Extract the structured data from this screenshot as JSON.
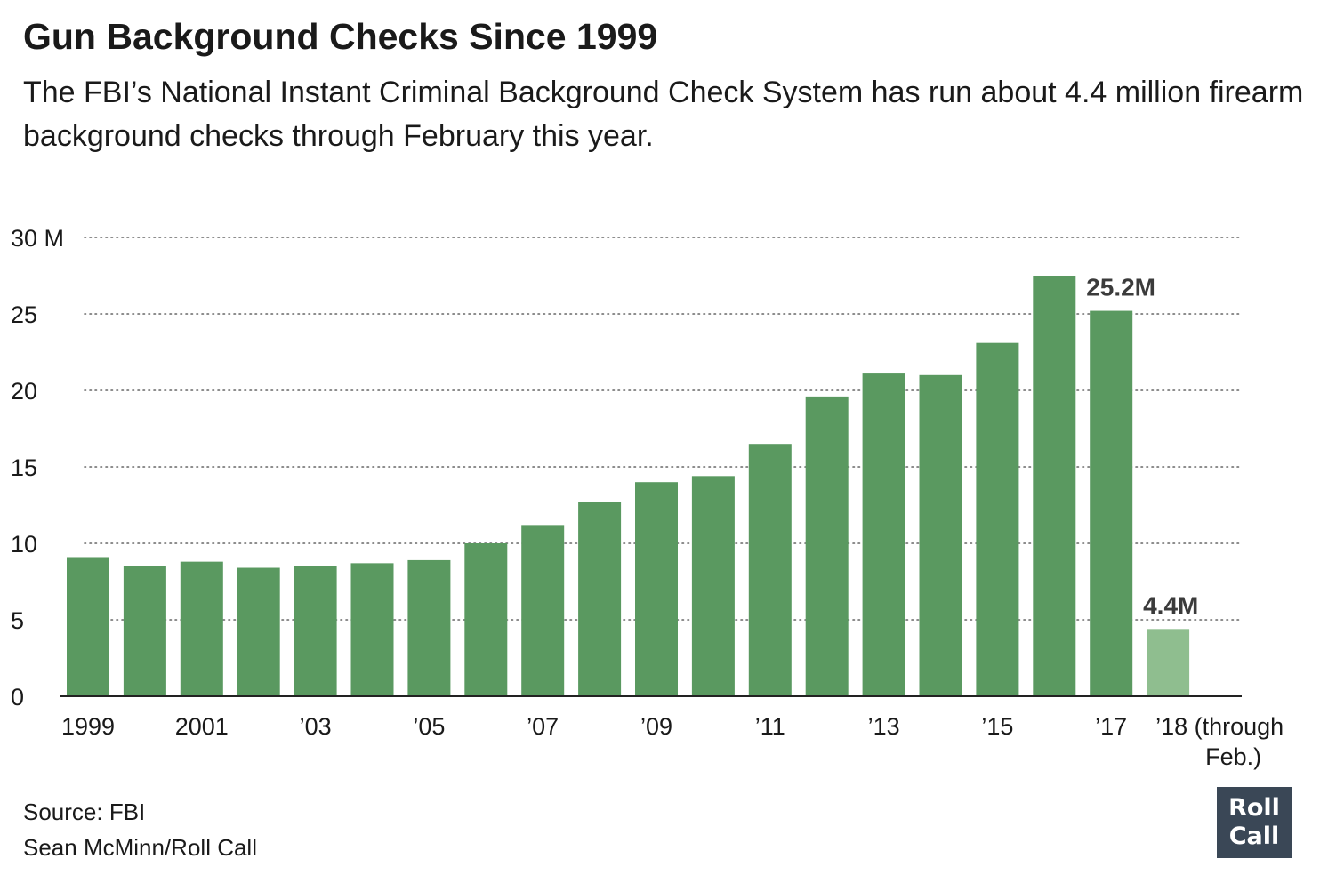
{
  "chart_data": {
    "type": "bar",
    "title": "Gun Background Checks Since 1999",
    "subtitle": "The FBI’s National Instant Criminal Background Check System has run about 4.4 million firearm background checks through February this year.",
    "categories": [
      "1999",
      "2000",
      "2001",
      "2002",
      "2003",
      "2004",
      "2005",
      "2006",
      "2007",
      "2008",
      "2009",
      "2010",
      "2011",
      "2012",
      "2013",
      "2014",
      "2015",
      "2016",
      "2017",
      "2018"
    ],
    "tick_labels": [
      "1999",
      "",
      "2001",
      "",
      "’03",
      "",
      "’05",
      "",
      "’07",
      "",
      "’09",
      "",
      "’11",
      "",
      "’13",
      "",
      "’15",
      "",
      "’17",
      "’18 (through Feb.)"
    ],
    "values": [
      9.1,
      8.5,
      8.8,
      8.4,
      8.5,
      8.7,
      8.9,
      10.0,
      11.2,
      12.7,
      14.0,
      14.4,
      16.5,
      19.6,
      21.1,
      21.0,
      23.1,
      27.5,
      25.2,
      4.4
    ],
    "ylim": [
      0,
      30
    ],
    "yticks": [
      0,
      5,
      10,
      15,
      20,
      25,
      30
    ],
    "ytick_labels": [
      "0",
      "5",
      "10",
      "15",
      "20",
      "25",
      "30 M"
    ],
    "xlabel": "",
    "ylabel": "",
    "grid": "dotted horizontal",
    "annotations": [
      {
        "category": "2017",
        "text": "25.2M"
      },
      {
        "category": "2018",
        "text": "4.4M"
      }
    ],
    "colors": {
      "bar": "#5a9960",
      "bar_partial": "#8fbe8f",
      "grid": "#666666",
      "axis": "#222222"
    }
  },
  "footer": {
    "source": "Source: FBI",
    "credit": "Sean McMinn/Roll Call"
  },
  "logo": {
    "line1": "Roll",
    "line2": "Call",
    "color": "#3a4756"
  }
}
